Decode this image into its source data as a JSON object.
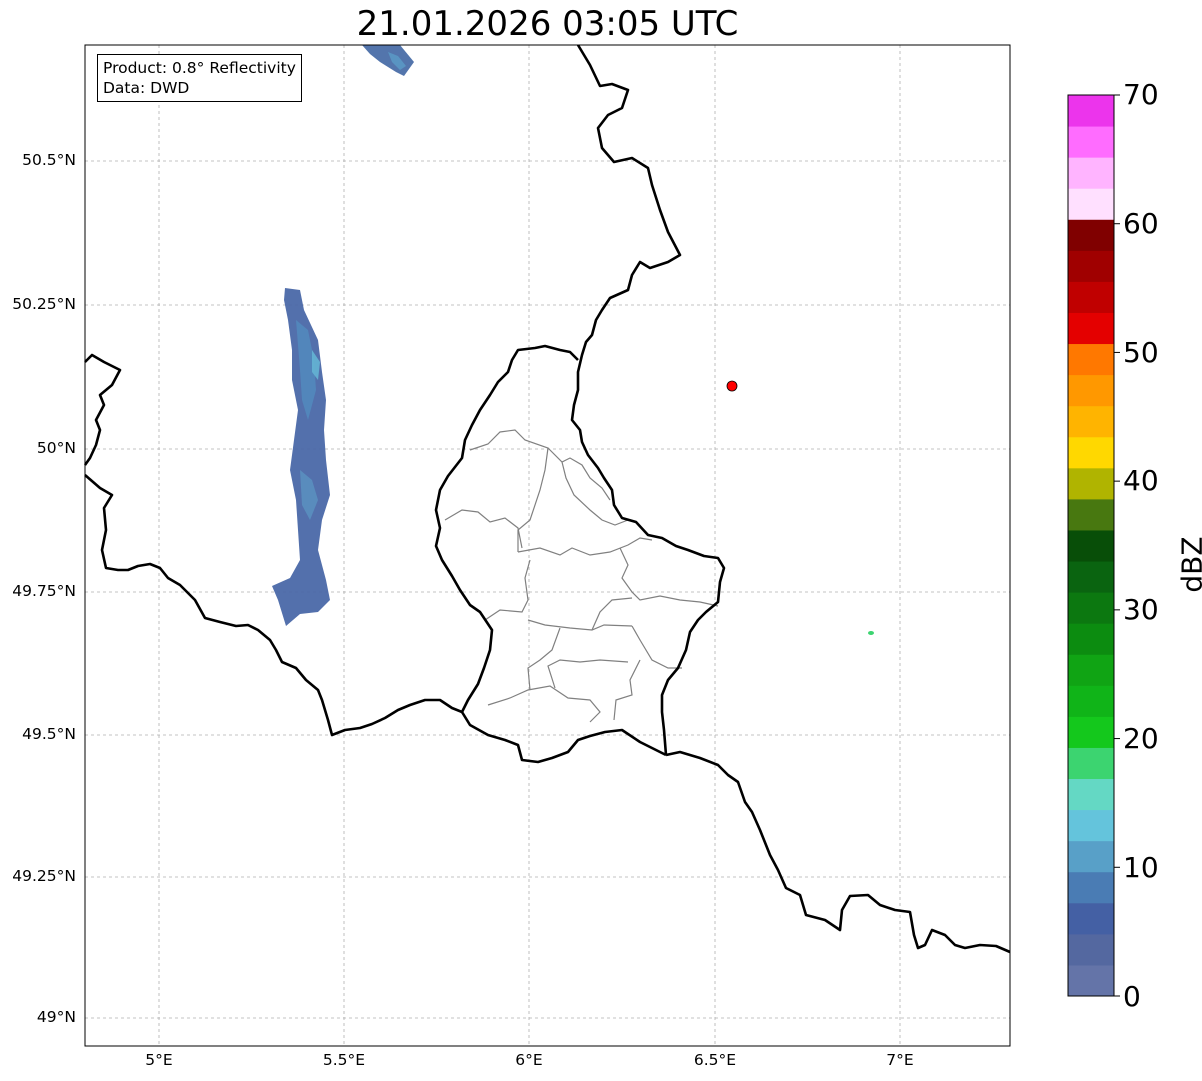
{
  "title": "21.01.2026 03:05 UTC",
  "info": {
    "product": "Product: 0.8° Reflectivity",
    "data": "Data: DWD"
  },
  "lat_ticks": [
    {
      "label": "50.5°N",
      "value": 50.5
    },
    {
      "label": "50.25°N",
      "value": 50.25
    },
    {
      "label": "50°N",
      "value": 50.0
    },
    {
      "label": "49.75°N",
      "value": 49.75
    },
    {
      "label": "49.5°N",
      "value": 49.5
    },
    {
      "label": "49.25°N",
      "value": 49.25
    },
    {
      "label": "49°N",
      "value": 49.0
    }
  ],
  "lon_ticks": [
    {
      "label": "5°E",
      "value": 5.0
    },
    {
      "label": "5.5°E",
      "value": 5.5
    },
    {
      "label": "6°E",
      "value": 6.0
    },
    {
      "label": "6.5°E",
      "value": 6.5
    },
    {
      "label": "7°E",
      "value": 7.0
    }
  ],
  "colorbar": {
    "unit": "dBZ",
    "ticks": [
      "0",
      "10",
      "20",
      "30",
      "40",
      "50",
      "60",
      "70"
    ],
    "colors": [
      "#6474a8",
      "#5468a0",
      "#4460a4",
      "#4a7cb4",
      "#58a0c8",
      "#64c4dc",
      "#64d8c4",
      "#3cd470",
      "#14c81c",
      "#10b418",
      "#10a414",
      "#0c8c10",
      "#0c7810",
      "#0a6410",
      "#084e08",
      "#487810",
      "#b0b400",
      "#ffd800",
      "#ffb400",
      "#ff9800",
      "#ff7800",
      "#e40000",
      "#c00000",
      "#a00000",
      "#800000",
      "#ffe0ff",
      "#ffb4ff",
      "#ff6cff",
      "#ec34ec"
    ]
  },
  "station_color": "#ff0000",
  "grid_color": "#b0b0b0"
}
